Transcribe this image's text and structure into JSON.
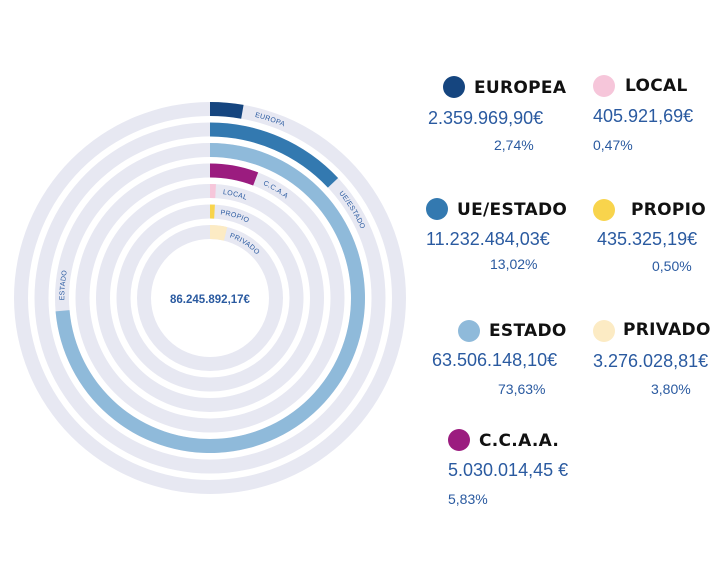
{
  "chart_data": {
    "type": "radial-bar",
    "total_label": "86.245.892,17€",
    "series": [
      {
        "key": "europea",
        "ring_label": "EUROPA",
        "legend": "EUROPEA",
        "value_text": "2.359.969,90€",
        "percent_text": "2,74%",
        "percent": 2.74,
        "color": "#15457f"
      },
      {
        "key": "ue_estado",
        "ring_label": "UE/ESTADO",
        "legend": "UE/ESTADO",
        "value_text": "11.232.484,03€",
        "percent_text": "13,02%",
        "percent": 13.02,
        "color": "#3379b0"
      },
      {
        "key": "estado",
        "ring_label": "ESTADO",
        "legend": "ESTADO",
        "value_text": "63.506.148,10€",
        "percent_text": "73,63%",
        "percent": 73.63,
        "color": "#8fbada"
      },
      {
        "key": "ccaa",
        "ring_label": "C.C.A.A",
        "legend": "C.C.A.A.",
        "value_text": "5.030.014,45 €",
        "percent_text": "5,83%",
        "percent": 5.83,
        "color": "#9b1c7f"
      },
      {
        "key": "local",
        "ring_label": "LOCAL",
        "legend": "LOCAL",
        "value_text": "405.921,69€",
        "percent_text": "0,47%",
        "percent": 0.47,
        "color": "#f6c6da"
      },
      {
        "key": "propio",
        "ring_label": "PROPIO",
        "legend": "PROPIO",
        "value_text": "435.325,19€",
        "percent_text": "0,50%",
        "percent": 0.5,
        "color": "#f8d44c"
      },
      {
        "key": "privado",
        "ring_label": "PRIVADO",
        "legend": "PRIVADO",
        "value_text": "3.276.028,81€",
        "percent_text": "3,80%",
        "percent": 3.8,
        "color": "#fcebc4"
      }
    ],
    "track_color": "#e7e8f2"
  }
}
